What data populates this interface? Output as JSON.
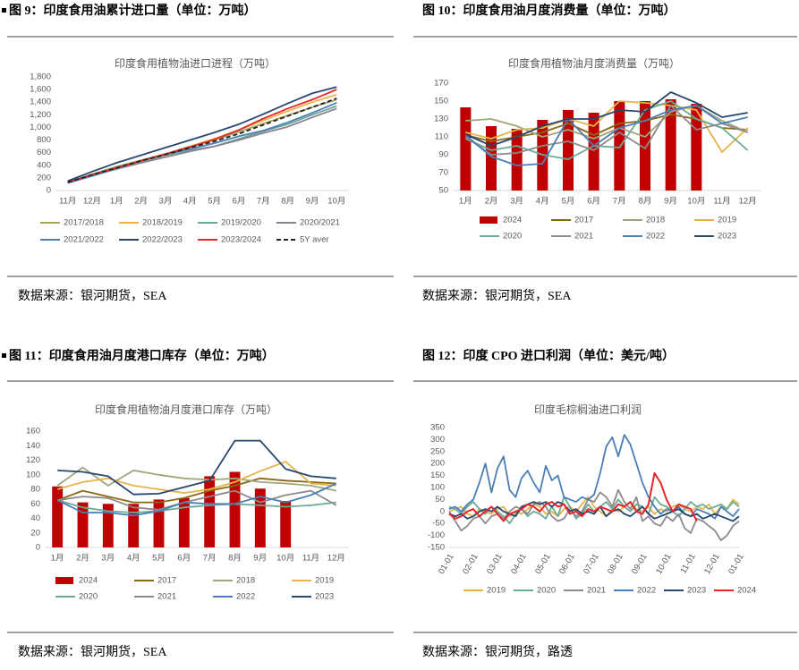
{
  "figures": [
    {
      "heading": "图 9：印度食用油累计进口量（单位：万吨）",
      "source": "数据来源：银河期货，SEA"
    },
    {
      "heading": "图 10：印度食用油月度消费量（单位：万吨）",
      "source": "数据来源：银河期货，SEA"
    },
    {
      "heading": "图 11：印度食用油月度港口库存（单位：万吨）",
      "source": "数据来源：银河期货，SEA"
    },
    {
      "heading": "图 12：印度 CPO 进口利润（单位：美元/吨）",
      "source": "数据来源：银河期货，路透"
    }
  ],
  "chart_data": [
    {
      "type": "line",
      "title": "印度食用植物油进口进程（万吨）",
      "categories": [
        "11月",
        "12月",
        "1月",
        "2月",
        "3月",
        "4月",
        "5月",
        "6月",
        "7月",
        "8月",
        "9月",
        "10月"
      ],
      "ylim": [
        0,
        1800
      ],
      "yticks": [
        0,
        200,
        400,
        600,
        800,
        {
          "value": 1000,
          "label": "1,000"
        },
        {
          "value": 1200,
          "label": "1,200"
        },
        {
          "value": 1400,
          "label": "1,400"
        },
        {
          "value": 1600,
          "label": "1,600"
        },
        {
          "value": 1800,
          "label": "1,800"
        }
      ],
      "series": [
        {
          "name": "2017/2018",
          "color": "#a3a45e",
          "values": [
            130,
            260,
            380,
            480,
            580,
            690,
            800,
            930,
            1060,
            1190,
            1320,
            1440
          ]
        },
        {
          "name": "2018/2019",
          "color": "#e6b44a",
          "values": [
            120,
            240,
            360,
            470,
            580,
            700,
            820,
            960,
            1110,
            1260,
            1400,
            1520
          ]
        },
        {
          "name": "2019/2020",
          "color": "#6aaa96",
          "values": [
            140,
            250,
            360,
            460,
            560,
            640,
            700,
            820,
            940,
            1050,
            1200,
            1340
          ]
        },
        {
          "name": "2020/2021",
          "color": "#8c8190",
          "values": [
            130,
            240,
            340,
            440,
            530,
            620,
            700,
            800,
            910,
            1010,
            1160,
            1300
          ]
        },
        {
          "name": "2021/2022",
          "color": "#4a7fb5",
          "values": [
            120,
            230,
            350,
            470,
            570,
            660,
            750,
            860,
            950,
            1080,
            1230,
            1390
          ]
        },
        {
          "name": "2022/2023",
          "color": "#27476e",
          "values": [
            150,
            300,
            440,
            560,
            680,
            800,
            920,
            1050,
            1210,
            1380,
            1540,
            1640
          ]
        },
        {
          "name": "2023/2024",
          "color": "#e8252a",
          "values": [
            130,
            250,
            360,
            470,
            580,
            690,
            810,
            960,
            1140,
            1300,
            1440,
            1600
          ]
        },
        {
          "name": "5Y aver",
          "color": "#222222",
          "dash": true,
          "values": [
            130,
            250,
            360,
            470,
            570,
            680,
            780,
            900,
            1040,
            1180,
            1320,
            1460
          ]
        }
      ]
    },
    {
      "type": "combo",
      "title": "印度食用植物油月度消费量（万吨）",
      "categories": [
        "1月",
        "2月",
        "3月",
        "4月",
        "5月",
        "6月",
        "7月",
        "8月",
        "9月",
        "10月",
        "11月",
        "12月"
      ],
      "ylim": [
        50,
        170
      ],
      "yticks": [
        50,
        70,
        90,
        110,
        130,
        150,
        170
      ],
      "series": [
        {
          "name": "2024",
          "color": "#c00000",
          "mark": "bar",
          "values": [
            143,
            122,
            119,
            129,
            140,
            137,
            150,
            150,
            152,
            147,
            null,
            null
          ]
        },
        {
          "name": "2017",
          "color": "#8b6914",
          "values": [
            112,
            105,
            110,
            115,
            125,
            112,
            125,
            128,
            135,
            130,
            120,
            118
          ]
        },
        {
          "name": "2018",
          "color": "#a0a67a",
          "values": [
            128,
            130,
            122,
            110,
            118,
            108,
            120,
            110,
            138,
            145,
            128,
            115
          ]
        },
        {
          "name": "2019",
          "color": "#e6b44a",
          "values": [
            115,
            108,
            118,
            120,
            130,
            122,
            150,
            148,
            145,
            140,
            93,
            120
          ]
        },
        {
          "name": "2020",
          "color": "#6aaa96",
          "values": [
            108,
            95,
            100,
            90,
            85,
            100,
            98,
            140,
            150,
            130,
            120,
            95
          ]
        },
        {
          "name": "2021",
          "color": "#8c8a8a",
          "values": [
            110,
            90,
            92,
            100,
            105,
            95,
            115,
            97,
            145,
            118,
            125,
            115
          ]
        },
        {
          "name": "2022",
          "color": "#4a7fb5",
          "values": [
            112,
            88,
            78,
            80,
            130,
            100,
            120,
            128,
            140,
            145,
            125,
            132
          ]
        },
        {
          "name": "2023",
          "color": "#27476e",
          "values": [
            113,
            100,
            110,
            122,
            130,
            130,
            140,
            138,
            160,
            148,
            132,
            137
          ]
        }
      ]
    },
    {
      "type": "combo",
      "title": "印度食用植物油月度港口库存（万吨）",
      "categories": [
        "1月",
        "2月",
        "3月",
        "4月",
        "5月",
        "6月",
        "7月",
        "8月",
        "9月",
        "10月",
        "11月",
        "12月"
      ],
      "ylim": [
        0,
        160
      ],
      "yticks": [
        0,
        20,
        40,
        60,
        80,
        100,
        120,
        140,
        160
      ],
      "series": [
        {
          "name": "2024",
          "color": "#c00000",
          "mark": "bar",
          "values": [
            84,
            62,
            60,
            60,
            66,
            68,
            98,
            104,
            81,
            64,
            null,
            null
          ]
        },
        {
          "name": "2017",
          "color": "#8b6914",
          "values": [
            65,
            78,
            70,
            62,
            62,
            68,
            78,
            85,
            95,
            92,
            90,
            88
          ]
        },
        {
          "name": "2018",
          "color": "#a0a67a",
          "values": [
            85,
            110,
            85,
            106,
            100,
            95,
            93,
            95,
            90,
            88,
            85,
            78
          ]
        },
        {
          "name": "2019",
          "color": "#e6b44a",
          "values": [
            80,
            90,
            95,
            85,
            80,
            75,
            80,
            90,
            105,
            118,
            88,
            85
          ]
        },
        {
          "name": "2020",
          "color": "#6aaa96",
          "values": [
            65,
            55,
            50,
            48,
            50,
            55,
            58,
            60,
            58,
            56,
            58,
            62
          ]
        },
        {
          "name": "2021",
          "color": "#8c8a8a",
          "values": [
            65,
            70,
            68,
            55,
            52,
            62,
            70,
            78,
            62,
            72,
            78,
            58
          ]
        },
        {
          "name": "2022",
          "color": "#4a7fb5",
          "values": [
            65,
            48,
            48,
            44,
            50,
            62,
            60,
            60,
            70,
            62,
            72,
            88
          ]
        },
        {
          "name": "2023",
          "color": "#27476e",
          "values": [
            106,
            104,
            98,
            73,
            74,
            83,
            92,
            147,
            147,
            108,
            98,
            95
          ]
        }
      ]
    },
    {
      "type": "line",
      "title": "印度毛棕榈油进口利润",
      "categories": [
        "01-01",
        null,
        null,
        null,
        "02-01",
        null,
        null,
        null,
        "03-01",
        null,
        null,
        null,
        "04-01",
        null,
        null,
        null,
        "05-01",
        null,
        null,
        null,
        "06-01",
        null,
        null,
        null,
        "07-01",
        null,
        null,
        null,
        "08-01",
        null,
        null,
        null,
        "09-01",
        null,
        null,
        null,
        "10-01",
        null,
        null,
        null,
        "11-01",
        null,
        null,
        null,
        "12-01",
        null,
        null,
        null,
        "01-01"
      ],
      "ylim": [
        -150,
        350
      ],
      "yticks": [
        -150,
        -100,
        -50,
        0,
        50,
        100,
        150,
        200,
        250,
        300,
        350
      ],
      "series": [
        {
          "name": "2019",
          "color": "#e6b44a",
          "values": [
            0,
            10,
            20,
            -10,
            -20,
            10,
            0,
            -10,
            10,
            20,
            -20,
            0,
            -10,
            10,
            30,
            20,
            -10,
            0,
            -20,
            10,
            20,
            0,
            30,
            60,
            20,
            0,
            -20,
            10,
            0,
            20,
            40,
            10,
            0,
            20,
            -10,
            10,
            0,
            20,
            30,
            10,
            0,
            20,
            10,
            30,
            -10,
            20,
            10,
            50,
            30
          ]
        },
        {
          "name": "2020",
          "color": "#6aaa96",
          "values": [
            20,
            10,
            -10,
            20,
            40,
            10,
            -10,
            20,
            0,
            -20,
            -50,
            -10,
            10,
            -20,
            0,
            -10,
            -30,
            20,
            -20,
            60,
            20,
            -30,
            -10,
            30,
            0,
            20,
            40,
            10,
            50,
            20,
            0,
            30,
            20,
            -10,
            60,
            30,
            20,
            0,
            -20,
            10,
            40,
            20,
            30,
            10,
            20,
            30,
            10,
            40,
            20
          ]
        },
        {
          "name": "2021",
          "color": "#8c8a8a",
          "values": [
            0,
            -40,
            -80,
            -60,
            -30,
            -20,
            -50,
            -20,
            -10,
            -30,
            0,
            20,
            10,
            -10,
            30,
            40,
            20,
            -20,
            -40,
            -30,
            10,
            -20,
            0,
            50,
            40,
            80,
            60,
            20,
            90,
            40,
            10,
            60,
            -40,
            -20,
            -50,
            -60,
            -20,
            -40,
            -10,
            -70,
            -90,
            -30,
            -40,
            -60,
            -80,
            -120,
            -100,
            -60,
            -40
          ]
        },
        {
          "name": "2022",
          "color": "#4a7fb5",
          "values": [
            10,
            20,
            0,
            30,
            50,
            120,
            200,
            80,
            180,
            230,
            90,
            60,
            140,
            170,
            120,
            80,
            190,
            130,
            150,
            60,
            50,
            40,
            60,
            50,
            70,
            160,
            270,
            310,
            230,
            320,
            280,
            200,
            120,
            60,
            20,
            -10,
            10,
            0,
            20,
            -10,
            -20,
            10,
            0,
            -10,
            -30,
            20,
            0,
            -20,
            10
          ]
        },
        {
          "name": "2023",
          "color": "#27476e",
          "values": [
            -10,
            -20,
            -10,
            -30,
            -20,
            0,
            10,
            0,
            20,
            0,
            -10,
            -20,
            20,
            30,
            40,
            30,
            40,
            20,
            40,
            30,
            0,
            10,
            -10,
            0,
            -10,
            20,
            -20,
            0,
            10,
            -10,
            -20,
            0,
            20,
            -10,
            -30,
            -20,
            -10,
            0,
            10,
            -10,
            -20,
            -10,
            -30,
            -20,
            -10,
            -20,
            -30,
            -40,
            -20
          ]
        },
        {
          "name": "2024",
          "color": "#e8252a",
          "width": 2,
          "values": [
            -10,
            -30,
            -20,
            0,
            10,
            -20,
            0,
            20,
            -10,
            -40,
            -10,
            0,
            10,
            30,
            20,
            0,
            30,
            40,
            20,
            30,
            -10,
            0,
            -20,
            10,
            0,
            20,
            10,
            0,
            30,
            20,
            40,
            0,
            -10,
            30,
            160,
            120,
            50,
            0,
            30,
            20,
            10,
            -40,
            null,
            null,
            null,
            null,
            null,
            null,
            null
          ]
        }
      ]
    }
  ]
}
